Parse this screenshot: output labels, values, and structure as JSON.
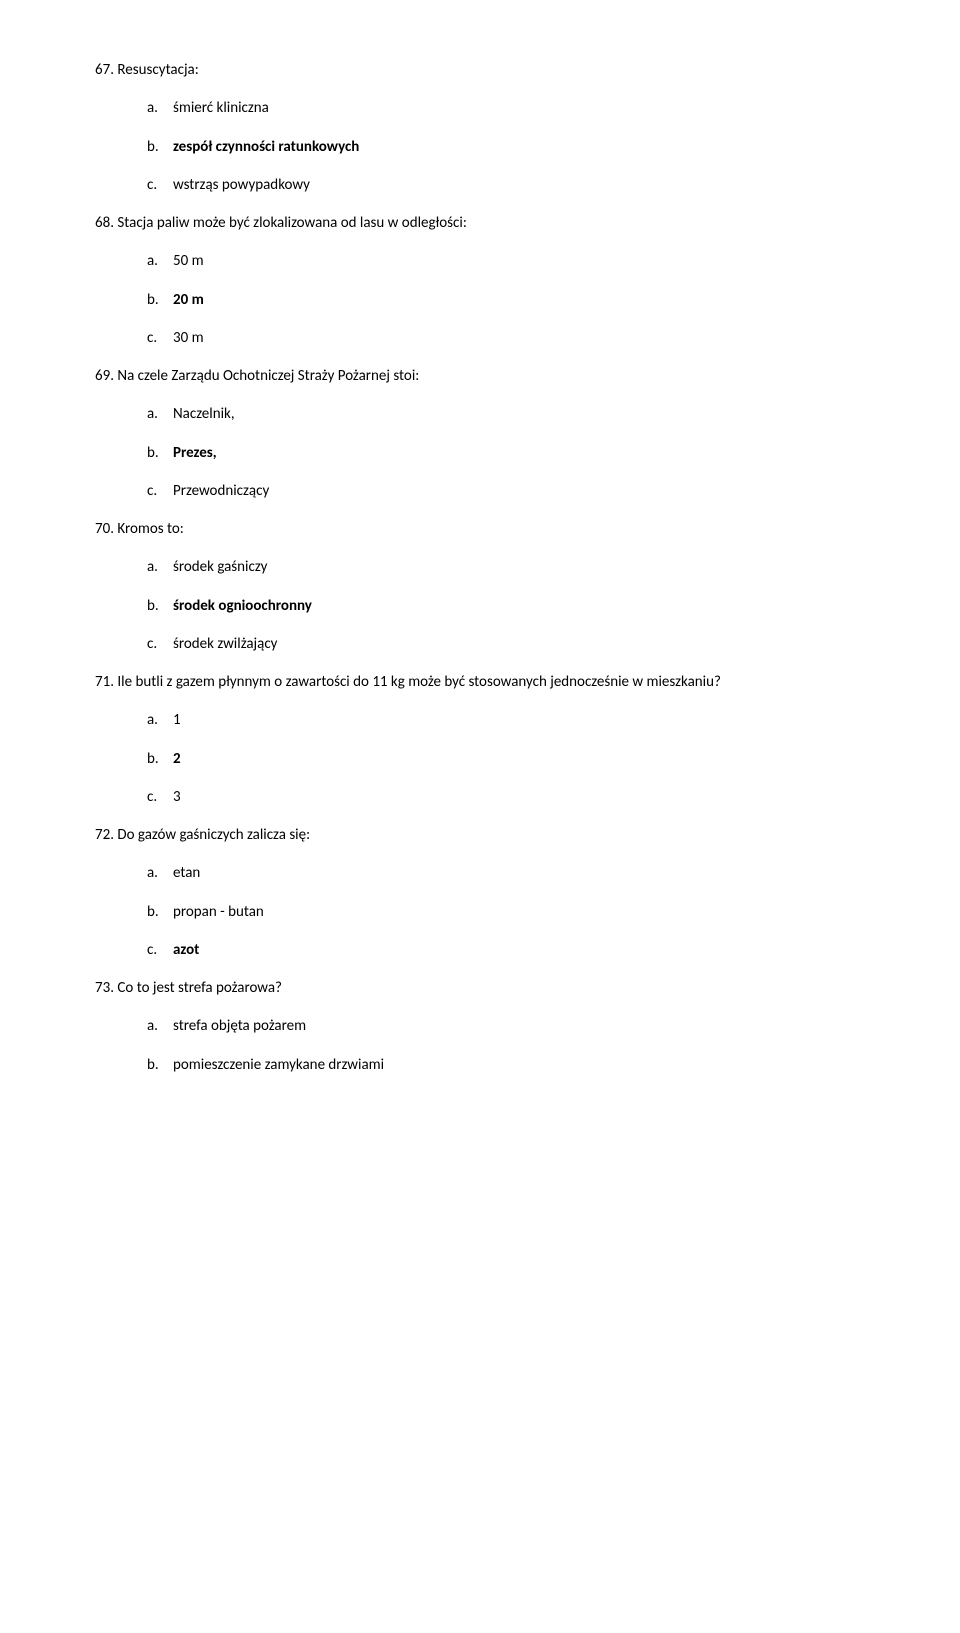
{
  "questions": [
    {
      "number": "67.",
      "text": "Resuscytacja:",
      "options": [
        {
          "letter": "a.",
          "text": "śmierć kliniczna",
          "bold": false
        },
        {
          "letter": "b.",
          "text": "zespół czynności ratunkowych",
          "bold": true
        },
        {
          "letter": "c.",
          "text": "wstrząs powypadkowy",
          "bold": false
        }
      ]
    },
    {
      "number": "68.",
      "text": "Stacja paliw może być zlokalizowana od lasu w odległości:",
      "options": [
        {
          "letter": "a.",
          "text": "50 m",
          "bold": false
        },
        {
          "letter": "b.",
          "text": "20 m",
          "bold": true
        },
        {
          "letter": "c.",
          "text": "30 m",
          "bold": false
        }
      ]
    },
    {
      "number": "69.",
      "text": "Na czele Zarządu Ochotniczej Straży Pożarnej stoi:",
      "options": [
        {
          "letter": "a.",
          "text": "Naczelnik,",
          "bold": false
        },
        {
          "letter": "b.",
          "text": "Prezes,",
          "bold": true
        },
        {
          "letter": "c.",
          "text": "Przewodniczący",
          "bold": false
        }
      ]
    },
    {
      "number": "70.",
      "text": "Kromos to:",
      "options": [
        {
          "letter": "a.",
          "text": "środek gaśniczy",
          "bold": false
        },
        {
          "letter": "b.",
          "text": "środek ognioochronny",
          "bold": true
        },
        {
          "letter": "c.",
          "text": "środek zwilżający",
          "bold": false
        }
      ]
    },
    {
      "number": "71.",
      "text": "Ile butli z gazem płynnym o zawartości do 11 kg może być stosowanych jednocześnie w mieszkaniu?",
      "options": [
        {
          "letter": "a.",
          "text": "1",
          "bold": false
        },
        {
          "letter": "b.",
          "text": "2",
          "bold": true
        },
        {
          "letter": "c.",
          "text": "3",
          "bold": false
        }
      ]
    },
    {
      "number": "72.",
      "text": "Do gazów gaśniczych zalicza się:",
      "options": [
        {
          "letter": "a.",
          "text": "etan",
          "bold": false
        },
        {
          "letter": "b.",
          "text": "propan - butan",
          "bold": false
        },
        {
          "letter": "c.",
          "text": "azot",
          "bold": true
        }
      ]
    },
    {
      "number": "73.",
      "text": "Co to jest strefa pożarowa?",
      "options": [
        {
          "letter": "a.",
          "text": "strefa objęta pożarem",
          "bold": false
        },
        {
          "letter": "b.",
          "text": "pomieszczenie zamykane drzwiami",
          "bold": false
        }
      ]
    }
  ]
}
